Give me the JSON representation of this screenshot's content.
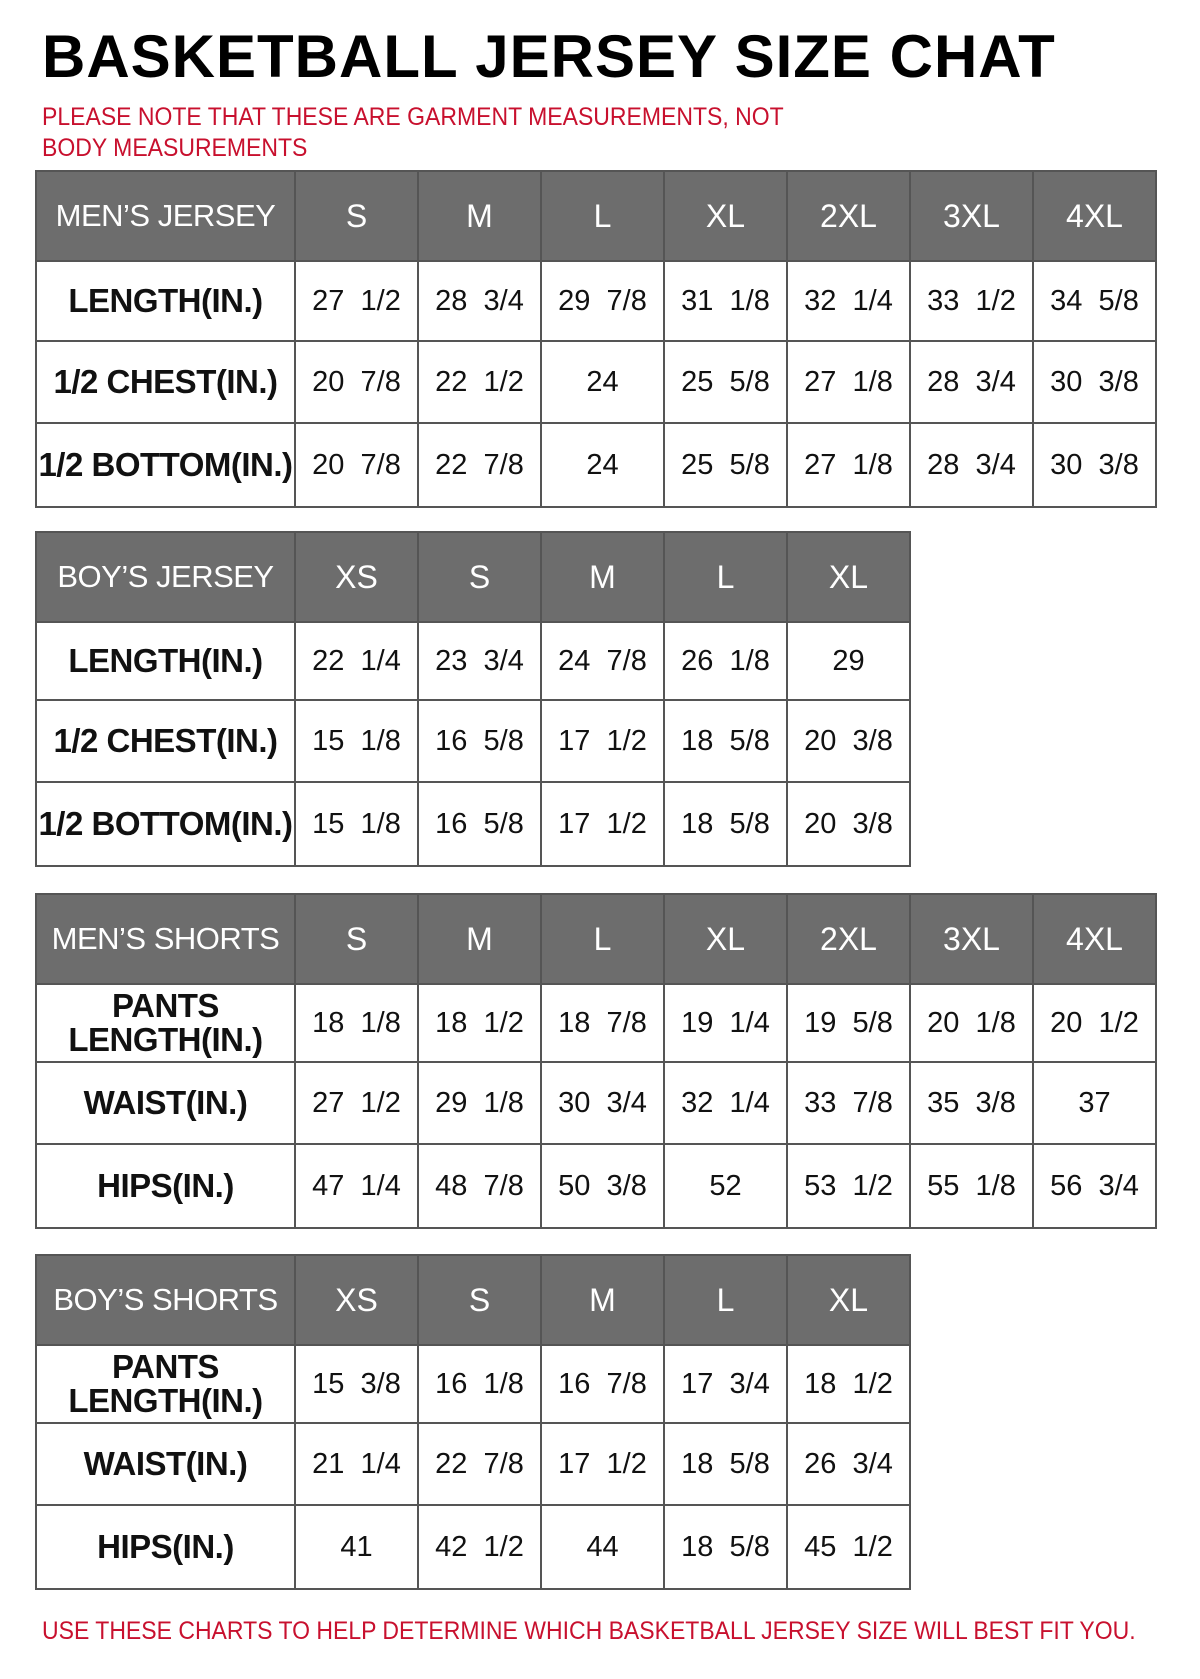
{
  "title": "BASKETBALL JERSEY SIZE CHAT",
  "note": "PLEASE NOTE THAT THESE ARE GARMENT MEASUREMENTS, NOT BODY MEASUREMENTS",
  "footer": "USE THESE CHARTS TO HELP DETERMINE WHICH BASKETBALL JERSEY SIZE WILL BEST FIT YOU.",
  "colors": {
    "header_bg": "#6d6d6d",
    "note_red": "#c8102e"
  },
  "tables": [
    {
      "label": "MEN’S JERSEY",
      "sizes": [
        "S",
        "M",
        "L",
        "XL",
        "2XL",
        "3XL",
        "4XL"
      ],
      "rows": [
        {
          "label": "LENGTH(IN.)",
          "values": [
            "27  1/2",
            "28  3/4",
            "29  7/8",
            "31  1/8",
            "32  1/4",
            "33  1/2",
            "34  5/8"
          ]
        },
        {
          "label": "1/2  CHEST(IN.)",
          "values": [
            "20  7/8",
            "22  1/2",
            "24",
            "25  5/8",
            "27  1/8",
            "28  3/4",
            "30  3/8"
          ]
        },
        {
          "label": "1/2  BOTTOM(IN.)",
          "values": [
            "20  7/8",
            "22  7/8",
            "24",
            "25  5/8",
            "27  1/8",
            "28  3/4",
            "30  3/8"
          ]
        }
      ]
    },
    {
      "label": "BOY’S JERSEY",
      "sizes": [
        "XS",
        "S",
        "M",
        "L",
        "XL"
      ],
      "rows": [
        {
          "label": "LENGTH(IN.)",
          "values": [
            "22  1/4",
            "23  3/4",
            "24  7/8",
            "26  1/8",
            "29"
          ]
        },
        {
          "label": "1/2  CHEST(IN.)",
          "values": [
            "15  1/8",
            "16  5/8",
            "17  1/2",
            "18  5/8",
            "20  3/8"
          ]
        },
        {
          "label": "1/2  BOTTOM(IN.)",
          "values": [
            "15  1/8",
            "16  5/8",
            "17  1/2",
            "18  5/8",
            "20  3/8"
          ]
        }
      ]
    },
    {
      "label": "MEN’S SHORTS",
      "sizes": [
        "S",
        "M",
        "L",
        "XL",
        "2XL",
        "3XL",
        "4XL"
      ],
      "rows": [
        {
          "label": "PANTS\nLENGTH(IN.)",
          "values": [
            "18  1/8",
            "18  1/2",
            "18  7/8",
            "19  1/4",
            "19  5/8",
            "20  1/8",
            "20  1/2"
          ]
        },
        {
          "label": "WAIST(IN.)",
          "values": [
            "27  1/2",
            "29  1/8",
            "30  3/4",
            "32  1/4",
            "33  7/8",
            "35  3/8",
            "37"
          ]
        },
        {
          "label": "HIPS(IN.)",
          "values": [
            "47  1/4",
            "48  7/8",
            "50  3/8",
            "52",
            "53  1/2",
            "55  1/8",
            "56  3/4"
          ]
        }
      ]
    },
    {
      "label": "BOY’S SHORTS",
      "sizes": [
        "XS",
        "S",
        "M",
        "L",
        "XL"
      ],
      "rows": [
        {
          "label": "PANTS\nLENGTH(IN.)",
          "values": [
            "15  3/8",
            "16  1/8",
            "16  7/8",
            "17  3/4",
            "18  1/2"
          ]
        },
        {
          "label": "WAIST(IN.)",
          "values": [
            "21  1/4",
            "22  7/8",
            "17  1/2",
            "18  5/8",
            "26  3/4"
          ]
        },
        {
          "label": "HIPS(IN.)",
          "values": [
            "41",
            "42  1/2",
            "44",
            "18  5/8",
            "45  1/2"
          ]
        }
      ]
    }
  ]
}
